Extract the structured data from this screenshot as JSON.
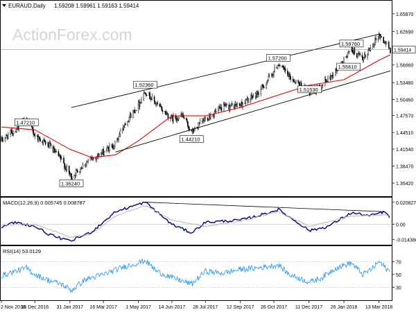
{
  "header": {
    "symbol_text": "EURAUD,Daily",
    "ohlc_text": "1.59208 1.59961 1.59163 1.59414"
  },
  "watermark": "ActionForex.com",
  "chart_data": [
    {
      "type": "candlestick",
      "panel": "price",
      "ylim": [
        1.333,
        1.666
      ],
      "price_ticks": [
        "1.65870",
        "1.62690",
        "1.59414",
        "1.56660",
        "1.53480",
        "1.50460",
        "1.47570",
        "1.44510",
        "1.41540",
        "1.38470",
        "1.35420"
      ],
      "current_price": "1.59414",
      "swing_labels": [
        {
          "text": "1.47210",
          "date": "2016-12-05",
          "value": 1.4721
        },
        {
          "text": "1.36240",
          "date": "2017-02-02",
          "value": 1.3624
        },
        {
          "text": "1.52360",
          "date": "2017-05-10",
          "value": 1.5236
        },
        {
          "text": "1.44210",
          "date": "2017-07-10",
          "value": 1.4421
        },
        {
          "text": "1.57200",
          "date": "2017-11-01",
          "value": 1.572
        },
        {
          "text": "1.51530",
          "date": "2017-12-12",
          "value": 1.5153
        },
        {
          "text": "1.55610",
          "date": "2018-02-01",
          "value": 1.5561
        },
        {
          "text": "1.59760",
          "date": "2018-02-05",
          "value": 1.5976
        }
      ],
      "close_path": [
        {
          "date": "2016-11-02",
          "value": 1.431
        },
        {
          "date": "2016-11-20",
          "value": 1.45
        },
        {
          "date": "2016-12-05",
          "value": 1.47
        },
        {
          "date": "2016-12-16",
          "value": 1.44
        },
        {
          "date": "2017-01-05",
          "value": 1.42
        },
        {
          "date": "2017-01-20",
          "value": 1.395
        },
        {
          "date": "2017-02-02",
          "value": 1.365
        },
        {
          "date": "2017-02-20",
          "value": 1.39
        },
        {
          "date": "2017-03-16",
          "value": 1.41
        },
        {
          "date": "2017-04-01",
          "value": 1.425
        },
        {
          "date": "2017-04-12",
          "value": 1.46
        },
        {
          "date": "2017-05-01",
          "value": 1.495
        },
        {
          "date": "2017-05-10",
          "value": 1.52
        },
        {
          "date": "2017-05-25",
          "value": 1.495
        },
        {
          "date": "2017-06-14",
          "value": 1.47
        },
        {
          "date": "2017-06-28",
          "value": 1.475
        },
        {
          "date": "2017-07-10",
          "value": 1.445
        },
        {
          "date": "2017-07-28",
          "value": 1.47
        },
        {
          "date": "2017-08-20",
          "value": 1.49
        },
        {
          "date": "2017-09-12",
          "value": 1.495
        },
        {
          "date": "2017-10-05",
          "value": 1.515
        },
        {
          "date": "2017-10-26",
          "value": 1.555
        },
        {
          "date": "2017-11-01",
          "value": 1.57
        },
        {
          "date": "2017-11-15",
          "value": 1.545
        },
        {
          "date": "2017-12-01",
          "value": 1.53
        },
        {
          "date": "2017-12-12",
          "value": 1.517
        },
        {
          "date": "2017-12-28",
          "value": 1.53
        },
        {
          "date": "2018-01-15",
          "value": 1.555
        },
        {
          "date": "2018-02-05",
          "value": 1.595
        },
        {
          "date": "2018-02-20",
          "value": 1.575
        },
        {
          "date": "2018-03-05",
          "value": 1.605
        },
        {
          "date": "2018-03-13",
          "value": 1.62
        },
        {
          "date": "2018-03-22",
          "value": 1.605
        },
        {
          "date": "2018-03-28",
          "value": 1.5941
        }
      ],
      "ma_series": [
        {
          "date": "2016-11-02",
          "value": 1.455
        },
        {
          "date": "2016-12-16",
          "value": 1.45
        },
        {
          "date": "2017-01-31",
          "value": 1.415
        },
        {
          "date": "2017-03-01",
          "value": 1.4
        },
        {
          "date": "2017-04-01",
          "value": 1.405
        },
        {
          "date": "2017-05-01",
          "value": 1.43
        },
        {
          "date": "2017-06-14",
          "value": 1.475
        },
        {
          "date": "2017-07-28",
          "value": 1.475
        },
        {
          "date": "2017-09-12",
          "value": 1.49
        },
        {
          "date": "2017-10-26",
          "value": 1.51
        },
        {
          "date": "2017-12-11",
          "value": 1.53
        },
        {
          "date": "2018-01-26",
          "value": 1.54
        },
        {
          "date": "2018-03-13",
          "value": 1.575
        },
        {
          "date": "2018-03-28",
          "value": 1.585
        }
      ],
      "trendlines": [
        {
          "from": {
            "date": "2017-02-02",
            "value": 1.49
          },
          "to": {
            "date": "2018-03-13",
            "value": 1.622
          }
        },
        {
          "from": {
            "date": "2017-04-01",
            "value": 1.41
          },
          "to": {
            "date": "2018-03-28",
            "value": 1.556
          }
        }
      ]
    },
    {
      "type": "line",
      "panel": "macd",
      "title": "MACD(12,26,9) 0.005745 0.008787",
      "ylim": [
        -0.018,
        0.024
      ],
      "ticks": [
        "0.020827",
        "0.00",
        "-0.014386"
      ],
      "series": [
        {
          "color": "#00007f",
          "values": [
            {
              "date": "2016-11-02",
              "value": -0.003
            },
            {
              "date": "2016-11-20",
              "value": 0.002
            },
            {
              "date": "2016-12-16",
              "value": -0.002
            },
            {
              "date": "2017-01-05",
              "value": -0.01
            },
            {
              "date": "2017-01-31",
              "value": -0.016
            },
            {
              "date": "2017-03-01",
              "value": -0.007
            },
            {
              "date": "2017-04-01",
              "value": 0.012
            },
            {
              "date": "2017-05-10",
              "value": 0.021
            },
            {
              "date": "2017-06-14",
              "value": 0.0
            },
            {
              "date": "2017-07-10",
              "value": -0.008
            },
            {
              "date": "2017-07-28",
              "value": 0.002
            },
            {
              "date": "2017-09-12",
              "value": 0.004
            },
            {
              "date": "2017-10-05",
              "value": 0.008
            },
            {
              "date": "2017-11-01",
              "value": 0.014
            },
            {
              "date": "2017-12-12",
              "value": -0.006
            },
            {
              "date": "2018-01-05",
              "value": -0.002
            },
            {
              "date": "2018-02-05",
              "value": 0.011
            },
            {
              "date": "2018-03-01",
              "value": 0.008
            },
            {
              "date": "2018-03-20",
              "value": 0.012
            },
            {
              "date": "2018-03-28",
              "value": 0.006
            }
          ]
        },
        {
          "color": "#b0b0b0",
          "values": [
            {
              "date": "2016-11-02",
              "value": -0.001
            },
            {
              "date": "2016-12-16",
              "value": 0.0
            },
            {
              "date": "2017-01-31",
              "value": -0.012
            },
            {
              "date": "2017-03-01",
              "value": -0.009
            },
            {
              "date": "2017-04-01",
              "value": 0.008
            },
            {
              "date": "2017-05-10",
              "value": 0.018
            },
            {
              "date": "2017-06-14",
              "value": 0.004
            },
            {
              "date": "2017-07-28",
              "value": -0.002
            },
            {
              "date": "2017-09-12",
              "value": 0.003
            },
            {
              "date": "2017-11-01",
              "value": 0.012
            },
            {
              "date": "2017-12-12",
              "value": -0.002
            },
            {
              "date": "2018-02-05",
              "value": 0.008
            },
            {
              "date": "2018-03-28",
              "value": 0.0088
            }
          ]
        }
      ],
      "trendline": {
        "from": {
          "date": "2017-05-10",
          "value": 0.021
        },
        "to": {
          "date": "2018-03-20",
          "value": 0.012
        }
      }
    },
    {
      "type": "line",
      "panel": "rsi",
      "title": "RSI(14) 53.0129",
      "ylim": [
        12,
        92
      ],
      "ticks": [
        "70",
        "50",
        "30"
      ],
      "levels": [
        70,
        30
      ],
      "series": [
        {
          "color": "#1e90ff",
          "values": [
            {
              "date": "2016-11-02",
              "value": 48
            },
            {
              "date": "2016-11-20",
              "value": 55
            },
            {
              "date": "2016-12-05",
              "value": 60
            },
            {
              "date": "2016-12-16",
              "value": 50
            },
            {
              "date": "2017-01-05",
              "value": 40
            },
            {
              "date": "2017-01-20",
              "value": 35
            },
            {
              "date": "2017-02-02",
              "value": 25
            },
            {
              "date": "2017-02-20",
              "value": 42
            },
            {
              "date": "2017-03-16",
              "value": 50
            },
            {
              "date": "2017-04-12",
              "value": 62
            },
            {
              "date": "2017-05-01",
              "value": 68
            },
            {
              "date": "2017-05-10",
              "value": 72
            },
            {
              "date": "2017-05-25",
              "value": 55
            },
            {
              "date": "2017-06-14",
              "value": 45
            },
            {
              "date": "2017-07-10",
              "value": 35
            },
            {
              "date": "2017-07-28",
              "value": 55
            },
            {
              "date": "2017-08-20",
              "value": 52
            },
            {
              "date": "2017-09-12",
              "value": 58
            },
            {
              "date": "2017-10-05",
              "value": 60
            },
            {
              "date": "2017-11-01",
              "value": 65
            },
            {
              "date": "2017-11-15",
              "value": 50
            },
            {
              "date": "2017-12-12",
              "value": 38
            },
            {
              "date": "2017-12-28",
              "value": 45
            },
            {
              "date": "2018-01-15",
              "value": 60
            },
            {
              "date": "2018-02-05",
              "value": 68
            },
            {
              "date": "2018-02-20",
              "value": 50
            },
            {
              "date": "2018-03-05",
              "value": 60
            },
            {
              "date": "2018-03-13",
              "value": 70
            },
            {
              "date": "2018-03-22",
              "value": 60
            },
            {
              "date": "2018-03-28",
              "value": 53
            }
          ]
        }
      ]
    }
  ],
  "x_axis": {
    "start_date": "2016-11-02",
    "end_date": "2018-03-28",
    "tick_labels": [
      {
        "text": "2 Nov 2016",
        "date": "2016-11-02"
      },
      {
        "text": "16 Dec 2016",
        "date": "2016-12-16"
      },
      {
        "text": "31 Jan 2017",
        "date": "2017-01-31"
      },
      {
        "text": "16 Mar 2017",
        "date": "2017-03-16"
      },
      {
        "text": "1 May 2017",
        "date": "2017-05-01"
      },
      {
        "text": "14 Jun 2017",
        "date": "2017-06-14"
      },
      {
        "text": "28 Jul 2017",
        "date": "2017-07-28"
      },
      {
        "text": "12 Sep 2017",
        "date": "2017-09-12"
      },
      {
        "text": "26 Oct 2017",
        "date": "2017-10-26"
      },
      {
        "text": "11 Dec 2017",
        "date": "2017-12-11"
      },
      {
        "text": "26 Jan 2018",
        "date": "2018-01-26"
      },
      {
        "text": "13 Mar 2018",
        "date": "2018-03-13"
      }
    ]
  },
  "colors": {
    "candle_up": "#ffffff",
    "candle_down": "#000000",
    "ma_line": "#e60000",
    "trendline": "#000000",
    "macd_line": "#00007f",
    "signal_line": "#b0b0b0",
    "rsi_line": "#1e90ff",
    "label_box_bg": "#ffffff",
    "current_price_bg": "#ffffff"
  }
}
